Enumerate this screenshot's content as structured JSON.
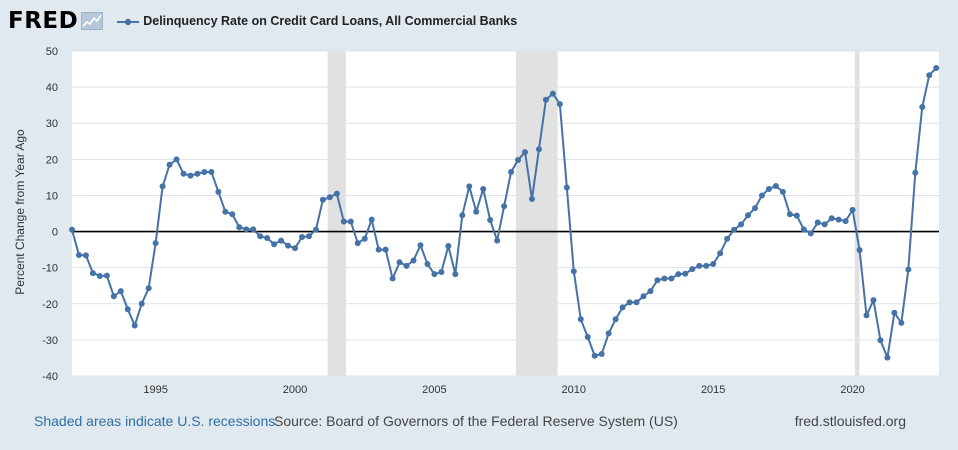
{
  "header": {
    "logo_text": "FRED",
    "legend_label": "Delinquency Rate on Credit Card Loans, All Commercial Banks"
  },
  "footer": {
    "recession_note": "Shaded areas indicate U.S. recessions",
    "source": "Source: Board of Governors of the Federal Reserve System (US)",
    "url": "fred.stlouisfed.org"
  },
  "colors": {
    "series": "#4572a7",
    "recession": "#e1e1e1",
    "zero_line": "#000000",
    "grid": "#dde3ea",
    "plot_bg": "#ffffff",
    "page_bg": "#e1e9f0"
  },
  "chart_data": {
    "type": "line",
    "title": "",
    "xlabel": "",
    "ylabel": "Percent Change from Year Ago",
    "xlim": [
      1992.0,
      2023.1
    ],
    "ylim": [
      -40,
      50
    ],
    "yticks": [
      50,
      40,
      30,
      20,
      10,
      0,
      -10,
      -20,
      -30,
      -40
    ],
    "xticks": [
      1995,
      2000,
      2005,
      2010,
      2015,
      2020
    ],
    "grid": true,
    "legend_position": "top",
    "recessions": [
      [
        2001.17,
        2001.83
      ],
      [
        2007.92,
        2009.42
      ],
      [
        2020.08,
        2020.25
      ]
    ],
    "series": [
      {
        "name": "Delinquency Rate on Credit Card Loans, All Commercial Banks",
        "start_year": 1992,
        "quarterly_values": [
          0.5,
          -6.5,
          -6.6,
          -11.5,
          -12.3,
          -12.2,
          -17.9,
          -16.5,
          -21.5,
          -26.0,
          -20.0,
          -15.7,
          -3.2,
          12.5,
          18.5,
          20.0,
          16.0,
          15.5,
          16.0,
          16.5,
          16.5,
          11.0,
          5.5,
          4.8,
          1.2,
          0.6,
          0.6,
          -1.3,
          -1.8,
          -3.5,
          -2.5,
          -3.9,
          -4.6,
          -1.5,
          -1.3,
          0.5,
          8.8,
          9.5,
          10.5,
          2.8,
          2.8,
          -3.2,
          -2.0,
          3.3,
          -5.0,
          -5.0,
          -13.0,
          -8.5,
          -9.5,
          -8.0,
          -3.8,
          -9.0,
          -11.8,
          -11.2,
          -4.0,
          -11.8,
          4.5,
          12.5,
          5.5,
          11.8,
          3.2,
          -2.5,
          7.0,
          16.5,
          19.8,
          22.0,
          9.0,
          22.8,
          36.5,
          38.2,
          35.3,
          12.2,
          -11.0,
          -24.3,
          -29.2,
          -34.4,
          -33.9,
          -28.2,
          -24.3,
          -21.0,
          -19.6,
          -19.6,
          -17.9,
          -16.5,
          -13.5,
          -13.0,
          -13.0,
          -11.8,
          -11.7,
          -10.4,
          -9.5,
          -9.5,
          -9.0,
          -6.0,
          -2.0,
          0.5,
          2.0,
          4.5,
          6.5,
          10.0,
          11.8,
          12.6,
          11.0,
          4.8,
          4.4,
          0.6,
          -0.5,
          2.5,
          2.0,
          3.7,
          3.3,
          2.9,
          6.0,
          -5.1,
          -23.2,
          -19.0,
          -30.1,
          -34.9,
          -22.5,
          -25.3,
          -10.5,
          16.3,
          34.5,
          43.3,
          45.3
        ]
      }
    ]
  }
}
